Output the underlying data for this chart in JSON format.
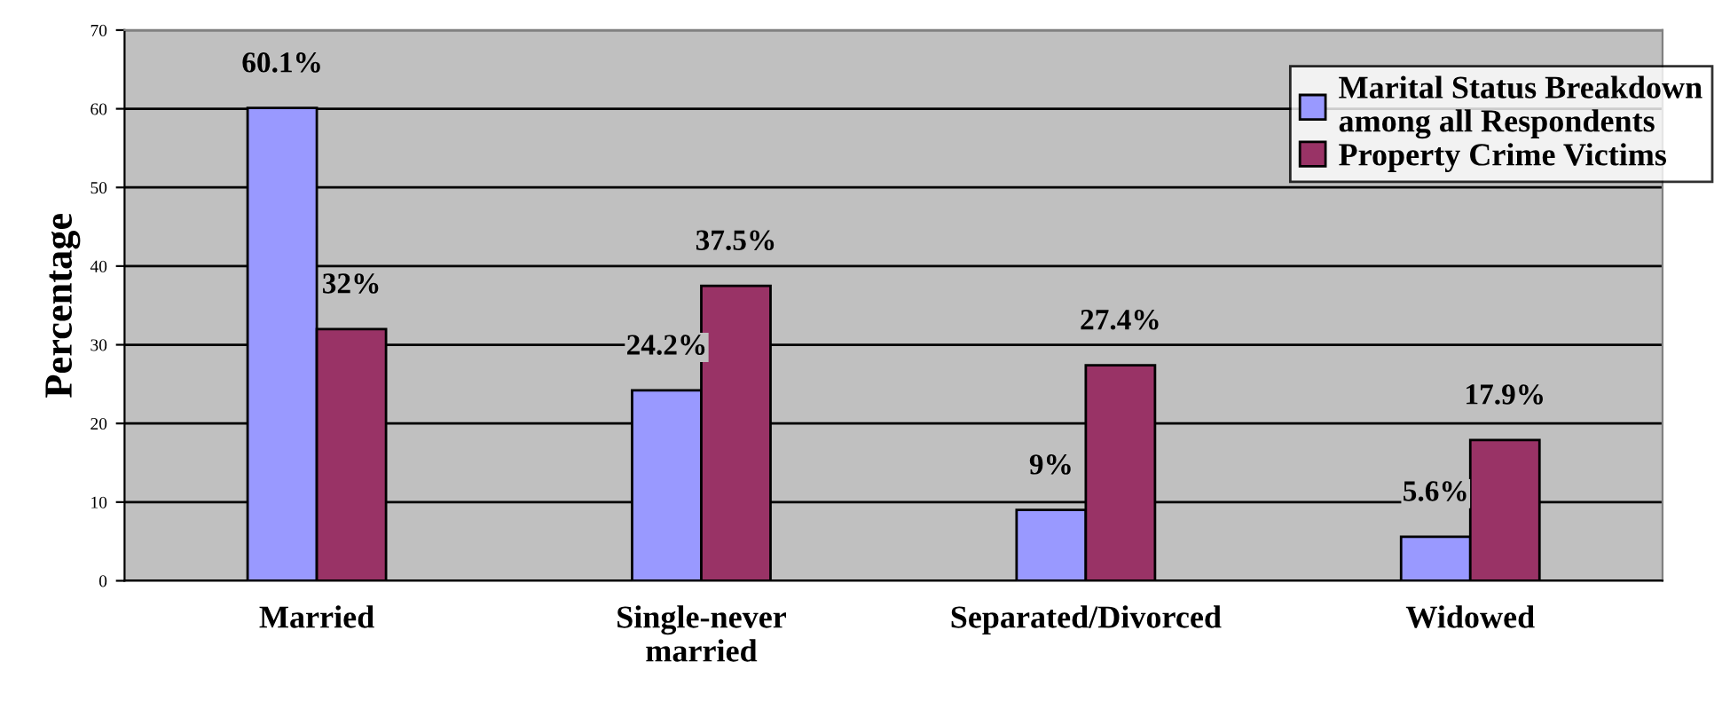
{
  "chart_data": {
    "type": "bar",
    "ylabel": "Percentage",
    "categories": [
      "Married",
      "Single-never\nmarried",
      "Separated/Divorced",
      "Widowed"
    ],
    "series": [
      {
        "name": "Marital Status Breakdown\namong all Respondents",
        "color": "#9999ff",
        "values": [
          60.1,
          24.2,
          9,
          5.6
        ],
        "value_labels": [
          "60.1%",
          "24.2%",
          "9%",
          "5.6%"
        ]
      },
      {
        "name": "Property Crime Victims",
        "color": "#993366",
        "values": [
          32,
          37.5,
          27.4,
          17.9
        ],
        "value_labels": [
          "32%",
          "37.5%",
          "27.4%",
          "17.9%"
        ]
      }
    ],
    "ylim": [
      0,
      70
    ],
    "yticks": [
      0,
      10,
      20,
      30,
      40,
      50,
      60,
      70
    ],
    "grid": "y",
    "legend": "top right"
  }
}
